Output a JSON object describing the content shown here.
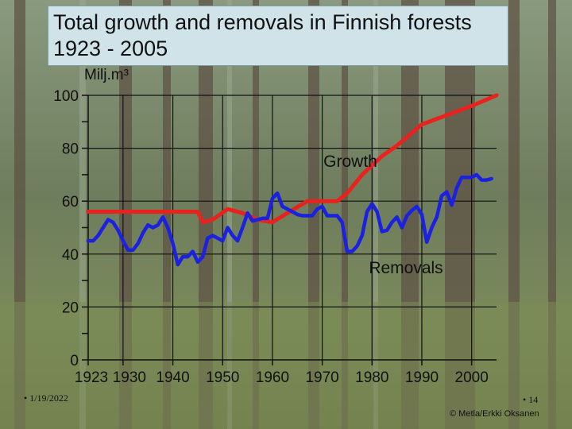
{
  "slide": {
    "title": "Total growth and removals in Finnish forests 1923 - 2005",
    "date": "• 1/19/2022",
    "page_number": "• 14",
    "credit": "© Metla/Erkki Oksanen"
  },
  "chart_data": {
    "type": "line",
    "title": "Total growth and removals in Finnish forests 1923 - 2005",
    "ylabel": "Milj.m³",
    "xlabel": "",
    "xlim": [
      1923,
      2005
    ],
    "ylim": [
      0,
      100
    ],
    "x_ticks": [
      1923,
      1930,
      1940,
      1950,
      1960,
      1970,
      1980,
      1990,
      2000
    ],
    "y_ticks": [
      0,
      20,
      40,
      60,
      80,
      100
    ],
    "grid": true,
    "series": [
      {
        "name": "Growth",
        "color": "#e8231e",
        "points": [
          [
            1923,
            56
          ],
          [
            1945,
            56
          ],
          [
            1946,
            52
          ],
          [
            1948,
            53
          ],
          [
            1951,
            57
          ],
          [
            1954,
            55.5
          ],
          [
            1957,
            53
          ],
          [
            1960,
            52
          ],
          [
            1963,
            55.5
          ],
          [
            1967,
            60
          ],
          [
            1973,
            60
          ],
          [
            1975,
            63
          ],
          [
            1978,
            70
          ],
          [
            1982,
            77
          ],
          [
            1985,
            81
          ],
          [
            1990,
            89
          ],
          [
            1995,
            92.5
          ],
          [
            2000,
            96
          ],
          [
            2005,
            100
          ]
        ]
      },
      {
        "name": "Removals",
        "color": "#1a22e0",
        "points": [
          [
            1923,
            45
          ],
          [
            1924,
            45
          ],
          [
            1925,
            47
          ],
          [
            1926,
            50
          ],
          [
            1927,
            53
          ],
          [
            1928,
            52
          ],
          [
            1929,
            49
          ],
          [
            1930,
            45
          ],
          [
            1931,
            41.5
          ],
          [
            1932,
            41.5
          ],
          [
            1933,
            44
          ],
          [
            1934,
            48
          ],
          [
            1935,
            51
          ],
          [
            1936,
            50
          ],
          [
            1937,
            51
          ],
          [
            1938,
            54
          ],
          [
            1939,
            50
          ],
          [
            1940,
            44
          ],
          [
            1941,
            36
          ],
          [
            1942,
            39
          ],
          [
            1943,
            39
          ],
          [
            1944,
            41
          ],
          [
            1945,
            37
          ],
          [
            1946,
            39
          ],
          [
            1947,
            46
          ],
          [
            1948,
            47
          ],
          [
            1949,
            46
          ],
          [
            1950,
            45
          ],
          [
            1951,
            50
          ],
          [
            1952,
            47
          ],
          [
            1953,
            45
          ],
          [
            1954,
            50
          ],
          [
            1955,
            55.5
          ],
          [
            1956,
            52.5
          ],
          [
            1957,
            53
          ],
          [
            1958,
            53.5
          ],
          [
            1959,
            53.5
          ],
          [
            1960,
            61
          ],
          [
            1961,
            63
          ],
          [
            1962,
            58
          ],
          [
            1963,
            57
          ],
          [
            1964,
            56
          ],
          [
            1965,
            55
          ],
          [
            1966,
            54.5
          ],
          [
            1967,
            54.5
          ],
          [
            1968,
            54.5
          ],
          [
            1969,
            57
          ],
          [
            1970,
            58
          ],
          [
            1971,
            54.5
          ],
          [
            1972,
            54.5
          ],
          [
            1973,
            54.5
          ],
          [
            1974,
            52
          ],
          [
            1975,
            41
          ],
          [
            1976,
            41
          ],
          [
            1977,
            43
          ],
          [
            1978,
            47
          ],
          [
            1979,
            56
          ],
          [
            1980,
            59
          ],
          [
            1981,
            56
          ],
          [
            1982,
            48.5
          ],
          [
            1983,
            49
          ],
          [
            1984,
            52
          ],
          [
            1985,
            54
          ],
          [
            1986,
            50
          ],
          [
            1987,
            54.5
          ],
          [
            1988,
            56.5
          ],
          [
            1989,
            58
          ],
          [
            1990,
            55
          ],
          [
            1991,
            44.5
          ],
          [
            1992,
            50
          ],
          [
            1993,
            54
          ],
          [
            1994,
            62
          ],
          [
            1995,
            63.5
          ],
          [
            1996,
            58.5
          ],
          [
            1997,
            65
          ],
          [
            1998,
            69
          ],
          [
            1999,
            69
          ],
          [
            2000,
            69
          ],
          [
            2001,
            70
          ],
          [
            2002,
            68
          ],
          [
            2003,
            68
          ],
          [
            2004,
            68.5
          ]
        ]
      }
    ]
  }
}
